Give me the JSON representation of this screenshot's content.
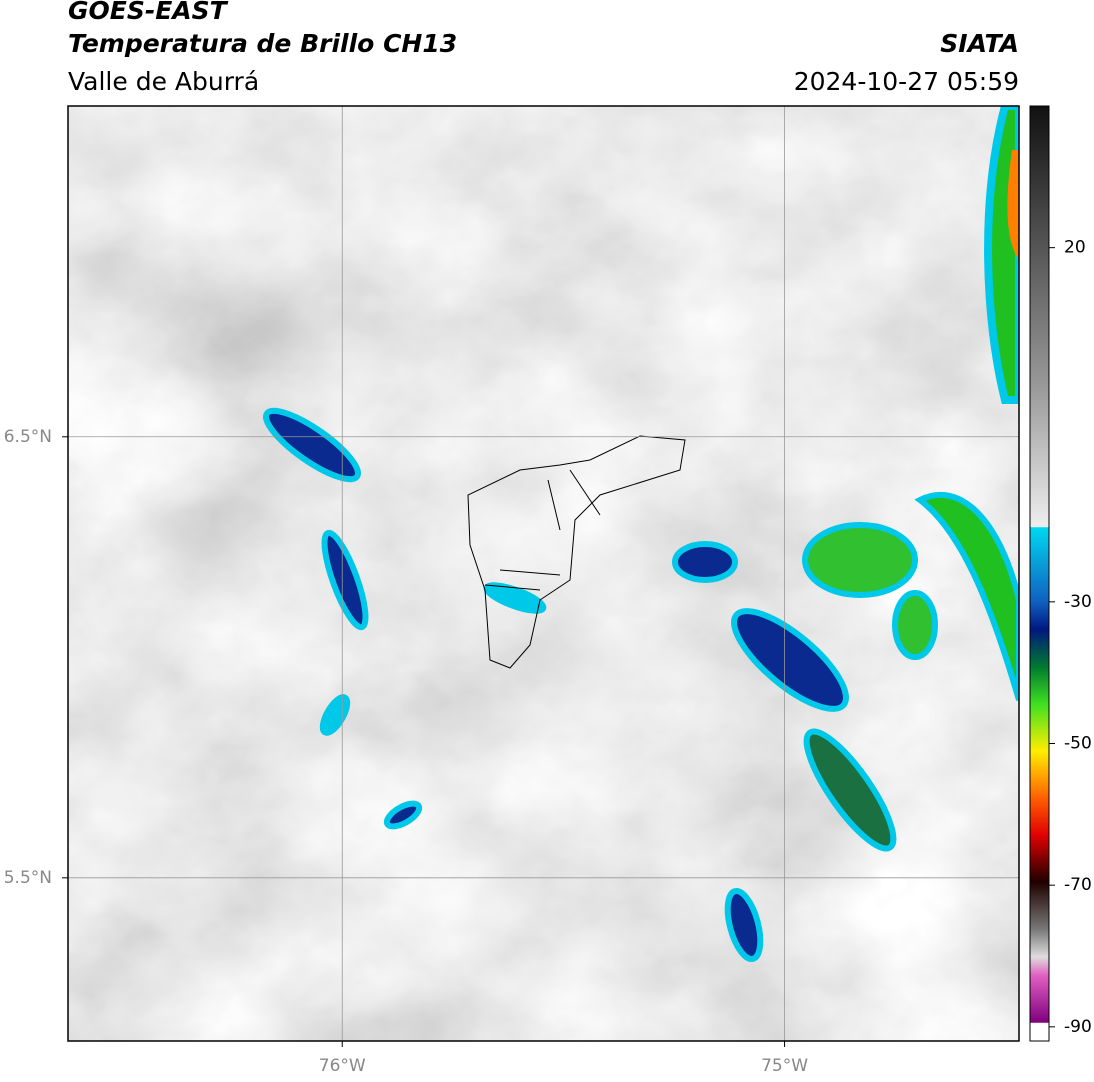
{
  "header": {
    "satellite": "GOES-EAST",
    "product": "Temperatura de Brillo CH13",
    "region": "Valle de Aburrá",
    "source": "SIATA",
    "timestamp": "2024-10-27 05:59"
  },
  "map": {
    "xlim": [
      -76.62,
      -74.47
    ],
    "ylim": [
      5.13,
      7.25
    ],
    "xticks": [
      {
        "value": -76,
        "label": "76°W"
      },
      {
        "value": -75,
        "label": "75°W"
      }
    ],
    "yticks": [
      {
        "value": 6.5,
        "label": "6.5°N"
      },
      {
        "value": 5.5,
        "label": "5.5°N"
      }
    ],
    "grid": true
  },
  "colorbar": {
    "lim": [
      -92,
      40
    ],
    "ticks": [
      20,
      -30,
      -50,
      -70,
      -90
    ]
  }
}
